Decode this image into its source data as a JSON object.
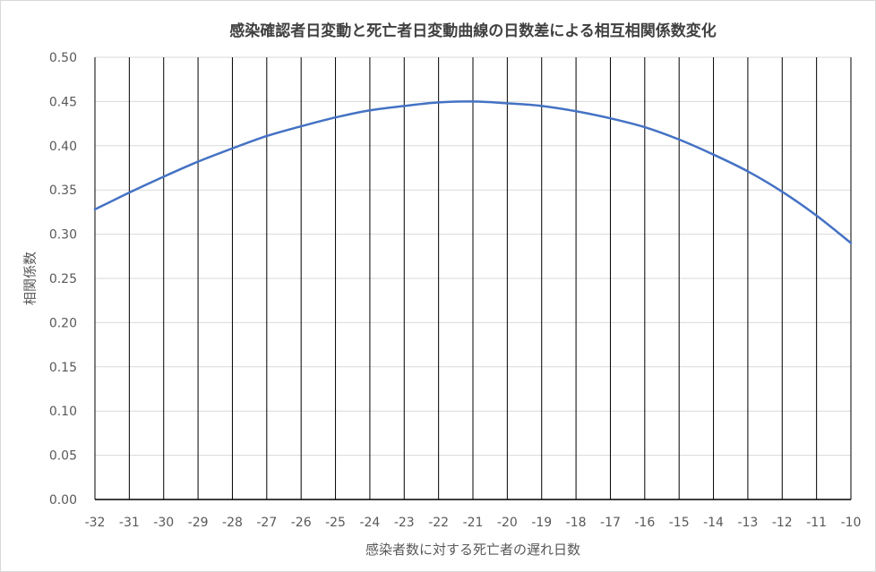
{
  "chart_data": {
    "type": "line",
    "title": "感染確認者日変動と死亡者日変動曲線の日数差による相互相関係数変化",
    "xlabel": "感染者数に対する死亡者の遅れ日数",
    "ylabel": "相関係数",
    "xlim": [
      -32,
      -10
    ],
    "ylim": [
      0,
      0.5
    ],
    "yticks": [
      "0.00",
      "0.05",
      "0.10",
      "0.15",
      "0.20",
      "0.25",
      "0.30",
      "0.35",
      "0.40",
      "0.45",
      "0.50"
    ],
    "xticks": [
      "-32",
      "-31",
      "-30",
      "-29",
      "-28",
      "-27",
      "-26",
      "-25",
      "-24",
      "-23",
      "-22",
      "-21",
      "-20",
      "-19",
      "-18",
      "-17",
      "-16",
      "-15",
      "-14",
      "-13",
      "-12",
      "-11",
      "-10"
    ],
    "grid": true,
    "series": [
      {
        "color": "#4472c4",
        "x": [
          -32,
          -31,
          -30,
          -29,
          -28,
          -27,
          -26,
          -25,
          -24,
          -23,
          -22,
          -21,
          -20,
          -19,
          -18,
          -17,
          -16,
          -15,
          -14,
          -13,
          -12,
          -11,
          -10
        ],
        "y": [
          0.328,
          0.347,
          0.365,
          0.382,
          0.397,
          0.411,
          0.422,
          0.432,
          0.44,
          0.445,
          0.449,
          0.45,
          0.448,
          0.445,
          0.439,
          0.431,
          0.421,
          0.407,
          0.39,
          0.371,
          0.348,
          0.321,
          0.29
        ]
      }
    ]
  }
}
